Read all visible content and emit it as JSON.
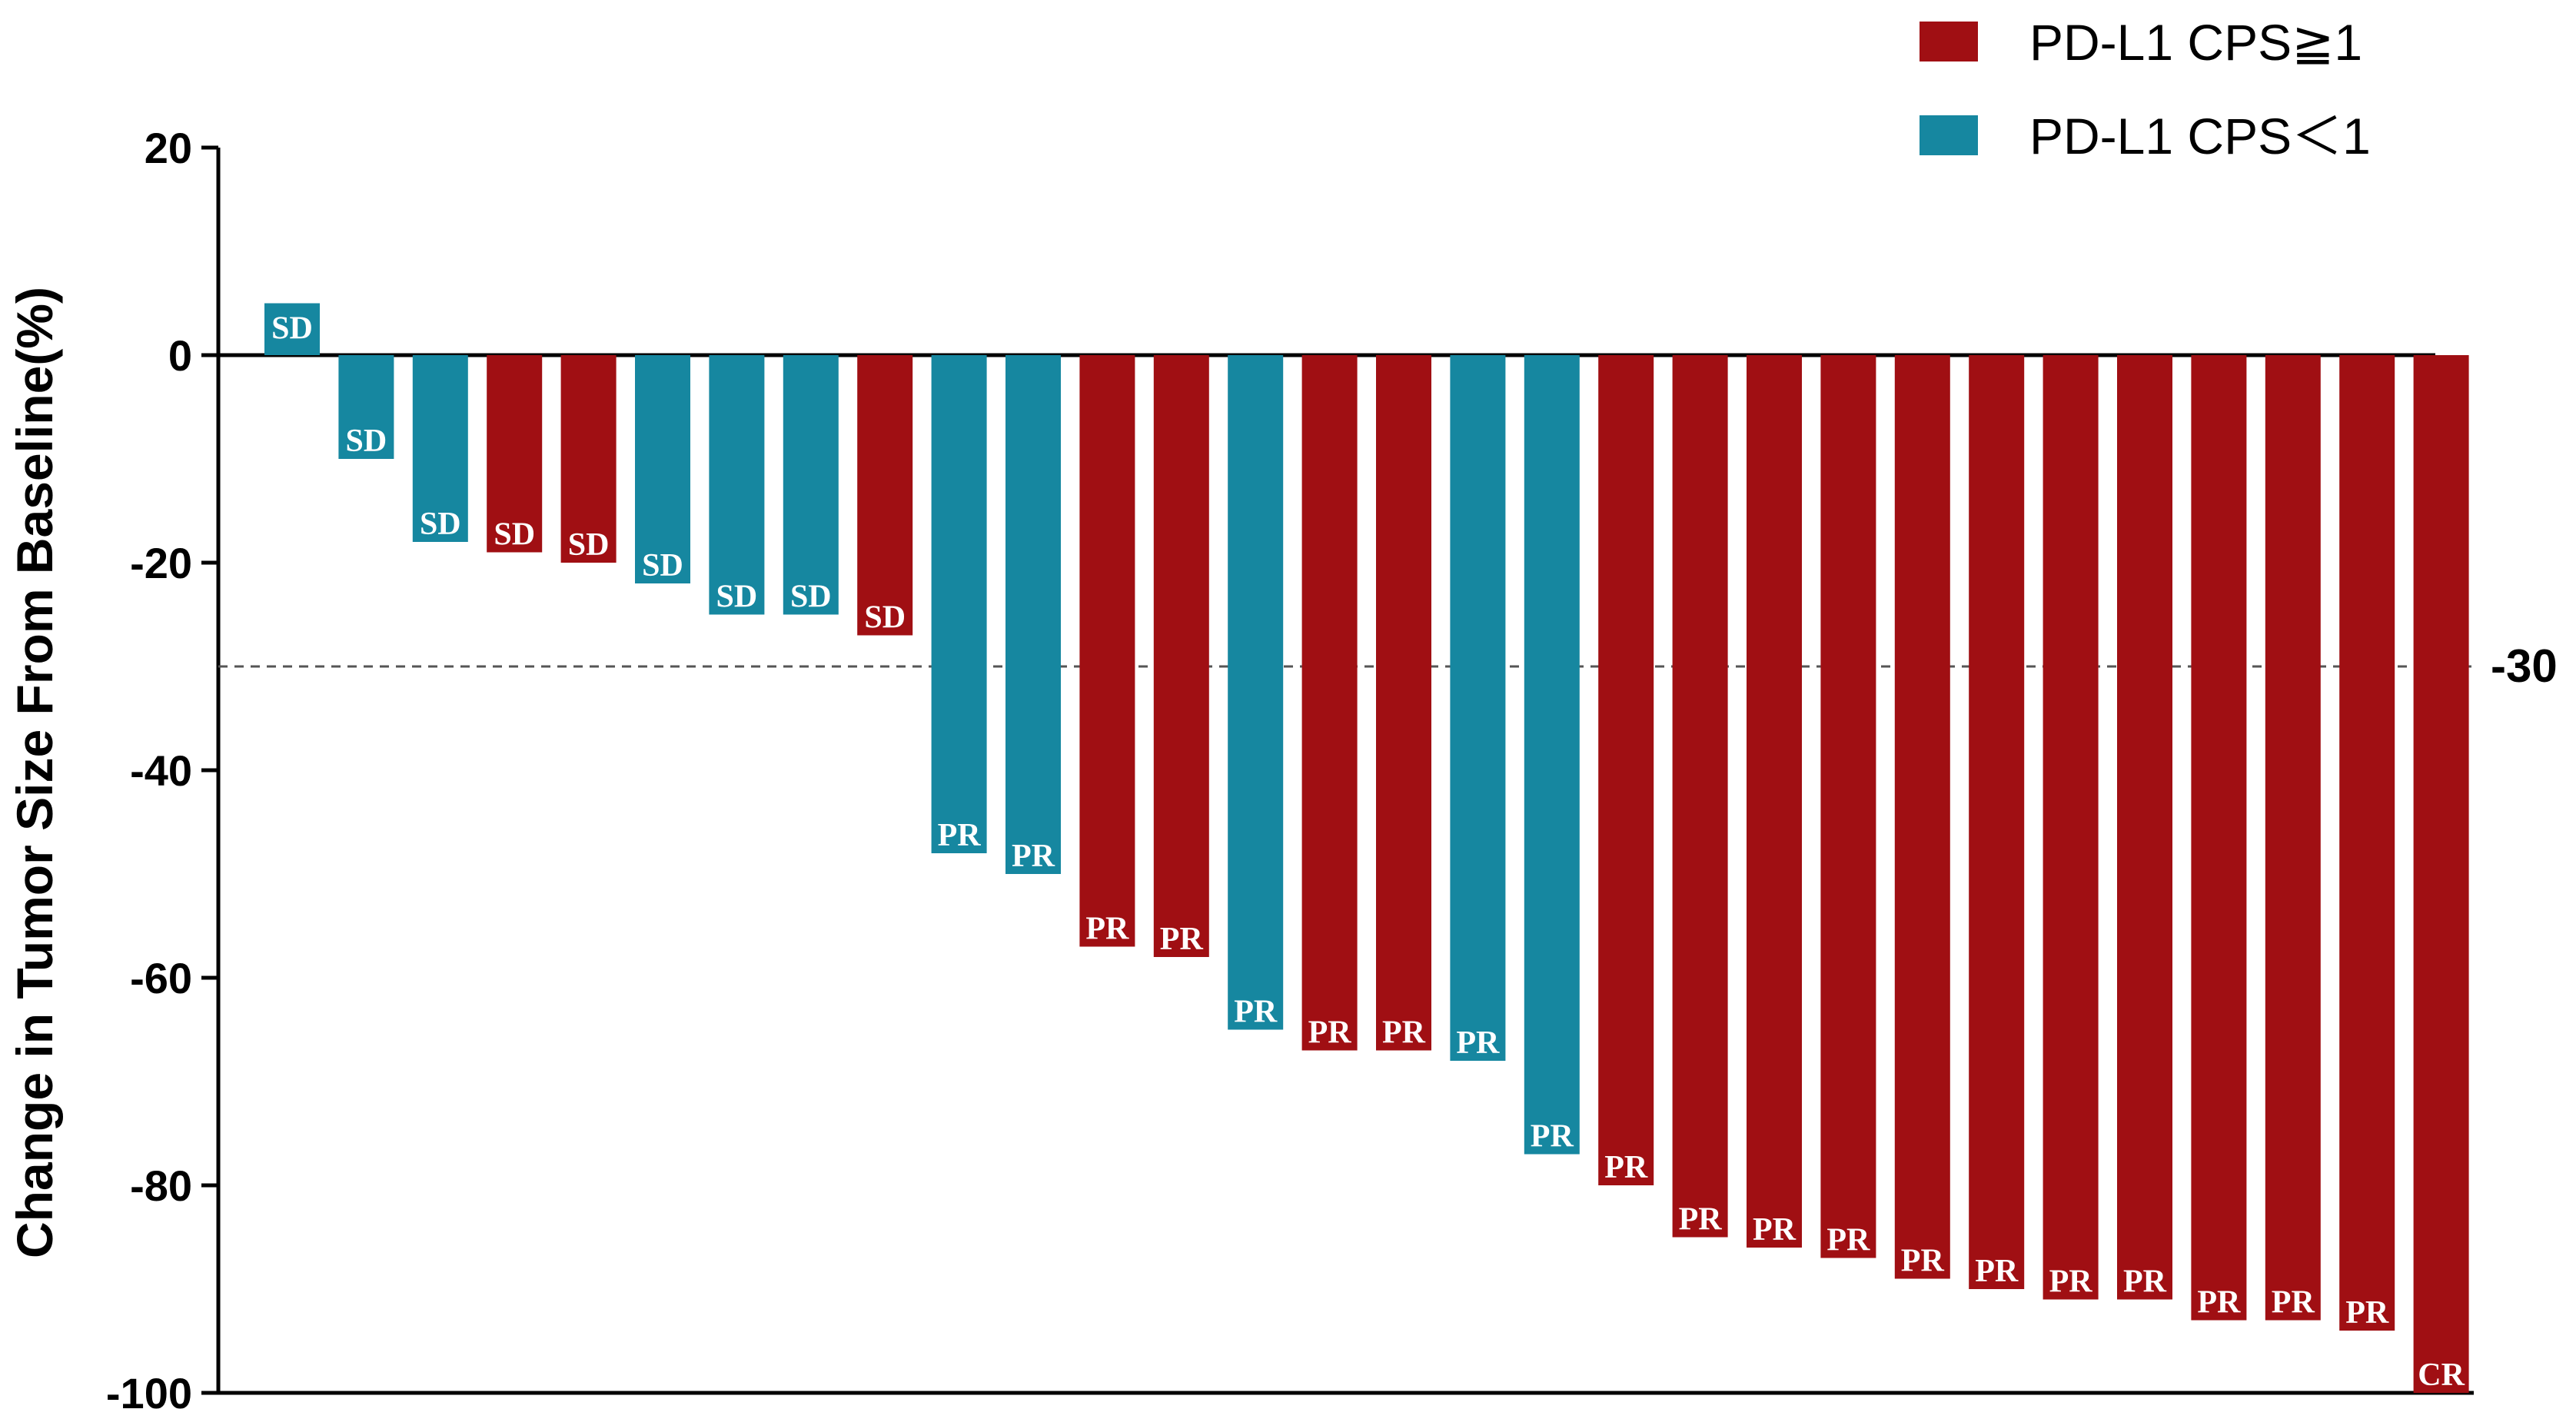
{
  "chart_data": {
    "type": "bar",
    "ylabel": "Change in Tumor Size From Baseline(%)",
    "ylim": [
      -100,
      20
    ],
    "yticks": [
      20,
      0,
      -20,
      -40,
      -60,
      -80,
      -100
    ],
    "reference_line": {
      "value": -30,
      "label": "-30"
    },
    "legend": {
      "placement": "top-right",
      "items": [
        {
          "key": "cps_ge1",
          "label": "PD-L1 CPS≧1",
          "color": "#a00f13"
        },
        {
          "key": "cps_lt1",
          "label": "PD-L1 CPS＜1",
          "color": "#1687a0"
        }
      ]
    },
    "colors": {
      "cps_ge1": "#a00f13",
      "cps_lt1": "#1687a0"
    },
    "bars": [
      {
        "value": 5,
        "group": "cps_lt1",
        "label": "SD"
      },
      {
        "value": -10,
        "group": "cps_lt1",
        "label": "SD"
      },
      {
        "value": -18,
        "group": "cps_lt1",
        "label": "SD"
      },
      {
        "value": -19,
        "group": "cps_ge1",
        "label": "SD"
      },
      {
        "value": -20,
        "group": "cps_ge1",
        "label": "SD"
      },
      {
        "value": -22,
        "group": "cps_lt1",
        "label": "SD"
      },
      {
        "value": -25,
        "group": "cps_lt1",
        "label": "SD"
      },
      {
        "value": -25,
        "group": "cps_lt1",
        "label": "SD"
      },
      {
        "value": -27,
        "group": "cps_ge1",
        "label": "SD"
      },
      {
        "value": -48,
        "group": "cps_lt1",
        "label": "PR"
      },
      {
        "value": -50,
        "group": "cps_lt1",
        "label": "PR"
      },
      {
        "value": -57,
        "group": "cps_ge1",
        "label": "PR"
      },
      {
        "value": -58,
        "group": "cps_ge1",
        "label": "PR"
      },
      {
        "value": -65,
        "group": "cps_lt1",
        "label": "PR"
      },
      {
        "value": -67,
        "group": "cps_ge1",
        "label": "PR"
      },
      {
        "value": -67,
        "group": "cps_ge1",
        "label": "PR"
      },
      {
        "value": -68,
        "group": "cps_lt1",
        "label": "PR"
      },
      {
        "value": -77,
        "group": "cps_lt1",
        "label": "PR"
      },
      {
        "value": -80,
        "group": "cps_ge1",
        "label": "PR"
      },
      {
        "value": -85,
        "group": "cps_ge1",
        "label": "PR"
      },
      {
        "value": -86,
        "group": "cps_ge1",
        "label": "PR"
      },
      {
        "value": -87,
        "group": "cps_ge1",
        "label": "PR"
      },
      {
        "value": -89,
        "group": "cps_ge1",
        "label": "PR"
      },
      {
        "value": -90,
        "group": "cps_ge1",
        "label": "PR"
      },
      {
        "value": -91,
        "group": "cps_ge1",
        "label": "PR"
      },
      {
        "value": -91,
        "group": "cps_ge1",
        "label": "PR"
      },
      {
        "value": -93,
        "group": "cps_ge1",
        "label": "PR"
      },
      {
        "value": -93,
        "group": "cps_ge1",
        "label": "PR"
      },
      {
        "value": -94,
        "group": "cps_ge1",
        "label": "PR"
      },
      {
        "value": -100,
        "group": "cps_ge1",
        "label": "CR"
      }
    ]
  }
}
